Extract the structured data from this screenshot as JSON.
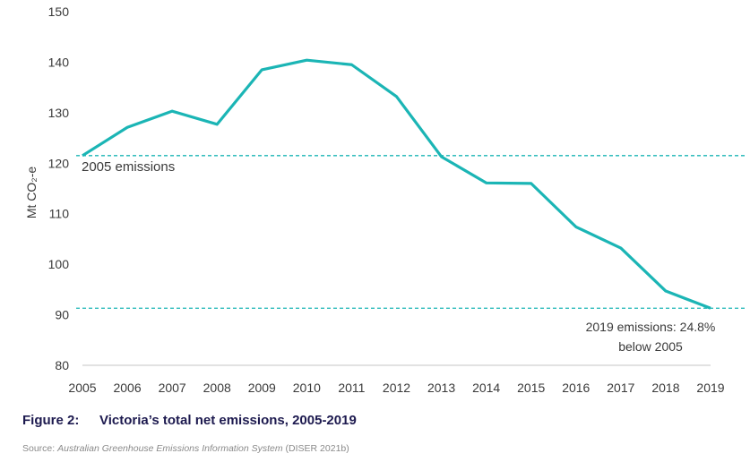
{
  "chart_data": {
    "type": "line",
    "title": "",
    "xlabel": "",
    "ylabel": "Mt CO₂-e",
    "ylim": [
      80,
      150
    ],
    "yticks": [
      80,
      90,
      100,
      110,
      120,
      130,
      140,
      150
    ],
    "categories": [
      "2005",
      "2006",
      "2007",
      "2008",
      "2009",
      "2010",
      "2011",
      "2012",
      "2013",
      "2014",
      "2015",
      "2016",
      "2017",
      "2018",
      "2019"
    ],
    "values": [
      121.5,
      127.1,
      130.3,
      127.7,
      138.5,
      140.4,
      139.5,
      133.2,
      121.3,
      116.1,
      116.0,
      107.4,
      103.2,
      94.7,
      91.3
    ],
    "line_color": "#1bb5b5",
    "grid": false,
    "reference_lines": [
      {
        "value": 121.5,
        "label": "2005 emissions"
      },
      {
        "value": 91.3,
        "label_line1": "2019 emissions: 24.8%",
        "label_line2": "below 2005"
      }
    ]
  },
  "caption": {
    "number": "Figure 2:",
    "text": "Victoria’s total net emissions, 2005-2019"
  },
  "source": {
    "prefix": "Source: ",
    "title": "Australian Greenhouse Emissions Information System",
    "suffix": " (DISER 2021b)"
  }
}
